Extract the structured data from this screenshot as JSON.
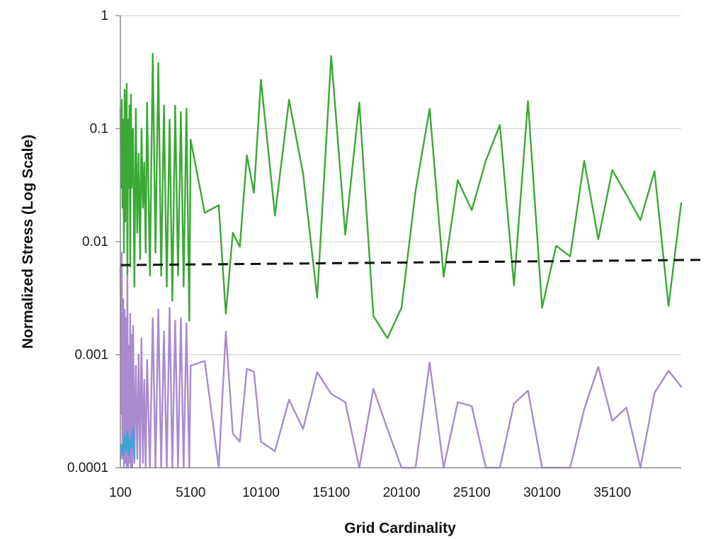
{
  "chart_data": {
    "type": "line",
    "xlabel": "Grid Cardinality",
    "ylabel": "Normalized Stress (Log Scale)",
    "y_scale": "log",
    "ylim": [
      0.0001,
      1
    ],
    "xlim": [
      100,
      40000
    ],
    "y_ticks": [
      {
        "value": 1,
        "label": "1"
      },
      {
        "value": 0.1,
        "label": "0.1"
      },
      {
        "value": 0.01,
        "label": "0.01"
      },
      {
        "value": 0.001,
        "label": "0.001"
      },
      {
        "value": 0.0001,
        "label": "0.0001"
      }
    ],
    "x_ticks": [
      {
        "value": 100,
        "label": "100"
      },
      {
        "value": 5100,
        "label": "5100"
      },
      {
        "value": 10100,
        "label": "10100"
      },
      {
        "value": 15100,
        "label": "15100"
      },
      {
        "value": 20100,
        "label": "20100"
      },
      {
        "value": 25100,
        "label": "25100"
      },
      {
        "value": 30100,
        "label": "30100"
      },
      {
        "value": 35100,
        "label": "35100"
      }
    ],
    "grid": "horizontal",
    "series": [
      {
        "color": "#3aa935",
        "style": "solid",
        "x": [
          100,
          150,
          200,
          250,
          300,
          350,
          400,
          450,
          500,
          550,
          600,
          650,
          700,
          750,
          800,
          850,
          900,
          950,
          1000,
          1100,
          1200,
          1300,
          1400,
          1500,
          1600,
          1700,
          1800,
          1900,
          2000,
          2200,
          2400,
          2600,
          2800,
          3000,
          3200,
          3400,
          3600,
          3800,
          4000,
          4200,
          4400,
          4600,
          4800,
          5000,
          5100,
          6100,
          7100,
          7600,
          8100,
          8600,
          9100,
          9600,
          10100,
          11100,
          12100,
          13100,
          14100,
          15100,
          16100,
          17100,
          18100,
          19100,
          20100,
          21100,
          22100,
          23100,
          24100,
          25100,
          26100,
          27100,
          28100,
          29100,
          30100,
          31100,
          32100,
          33100,
          34100,
          35100,
          36100,
          37100,
          38100,
          39100,
          40000
        ],
        "y": [
          0.15,
          0.03,
          0.18,
          0.02,
          0.12,
          0.008,
          0.22,
          0.015,
          0.09,
          0.25,
          0.005,
          0.12,
          0.03,
          0.16,
          0.006,
          0.2,
          0.03,
          0.07,
          0.1,
          0.004,
          0.15,
          0.012,
          0.06,
          0.007,
          0.1,
          0.02,
          0.05,
          0.008,
          0.17,
          0.005,
          0.46,
          0.008,
          0.38,
          0.005,
          0.16,
          0.004,
          0.12,
          0.003,
          0.16,
          0.005,
          0.14,
          0.004,
          0.15,
          0.002,
          0.08,
          0.018,
          0.021,
          0.0023,
          0.012,
          0.009,
          0.058,
          0.027,
          0.27,
          0.017,
          0.18,
          0.04,
          0.0032,
          0.44,
          0.0115,
          0.17,
          0.0022,
          0.0014,
          0.0026,
          0.028,
          0.15,
          0.0049,
          0.035,
          0.019,
          0.052,
          0.108,
          0.0041,
          0.175,
          0.0026,
          0.0092,
          0.0074,
          0.052,
          0.0105,
          0.043,
          0.026,
          0.0155,
          0.042,
          0.0027,
          0.022
        ]
      },
      {
        "color": "#a98bd0",
        "style": "solid",
        "x": [
          100,
          150,
          200,
          250,
          300,
          350,
          400,
          450,
          500,
          550,
          600,
          650,
          700,
          750,
          800,
          850,
          900,
          950,
          1000,
          1100,
          1200,
          1300,
          1400,
          1500,
          1600,
          1700,
          1800,
          1900,
          2000,
          2200,
          2400,
          2600,
          2800,
          3000,
          3200,
          3400,
          3600,
          3800,
          4000,
          4200,
          4400,
          4600,
          4800,
          5000,
          5100,
          6100,
          7100,
          7600,
          8100,
          8600,
          9100,
          9600,
          10100,
          11100,
          12100,
          13100,
          14100,
          15100,
          16100,
          17100,
          18100,
          19100,
          20100,
          21100,
          22100,
          23100,
          24100,
          25100,
          26100,
          27100,
          28100,
          29100,
          30100,
          31100,
          32100,
          33100,
          34100,
          35100,
          36100,
          37100,
          38100,
          39100,
          40000
        ],
        "y": [
          0.006,
          0.0003,
          0.008,
          0.00012,
          0.0031,
          0.0001,
          0.0025,
          0.00011,
          0.0021,
          0.0001,
          0.005,
          0.0001,
          0.0012,
          0.00011,
          0.0023,
          0.0001,
          0.0015,
          0.0001,
          0.0018,
          0.00011,
          0.0008,
          0.00012,
          0.001,
          0.0001,
          0.0014,
          0.00011,
          0.0006,
          0.0001,
          0.0009,
          0.0001,
          0.0021,
          0.0001,
          0.0025,
          0.0001,
          0.0016,
          0.0001,
          0.0026,
          0.0001,
          0.002,
          0.0001,
          0.0021,
          0.0001,
          0.0019,
          0.0001,
          0.0008,
          0.00088,
          0.0001,
          0.0016,
          0.0002,
          0.00017,
          0.00075,
          0.00071,
          0.00017,
          0.00014,
          0.0004,
          0.00022,
          0.0007,
          0.00045,
          0.00038,
          0.0001,
          0.0005,
          0.00022,
          0.0001,
          0.0001,
          0.00085,
          0.0001,
          0.00038,
          0.00035,
          0.0001,
          0.0001,
          0.00037,
          0.00048,
          0.0001,
          0.0001,
          0.0001,
          0.00033,
          0.00078,
          0.00026,
          0.00034,
          0.0001,
          0.00046,
          0.00072,
          0.00052
        ]
      },
      {
        "color": "#35a7d8",
        "style": "solid",
        "x": [
          100,
          200,
          300,
          400,
          500,
          600,
          700,
          800,
          900,
          1000,
          1100
        ],
        "y": [
          0.00012,
          0.00016,
          0.00013,
          0.00019,
          0.00014,
          0.00021,
          0.00013,
          0.00018,
          0.00015,
          0.00022,
          0.00012
        ]
      },
      {
        "color": "#111111",
        "style": "dashed",
        "x": [
          100,
          40000
        ],
        "y": [
          0.0062,
          0.0069
        ]
      }
    ]
  }
}
